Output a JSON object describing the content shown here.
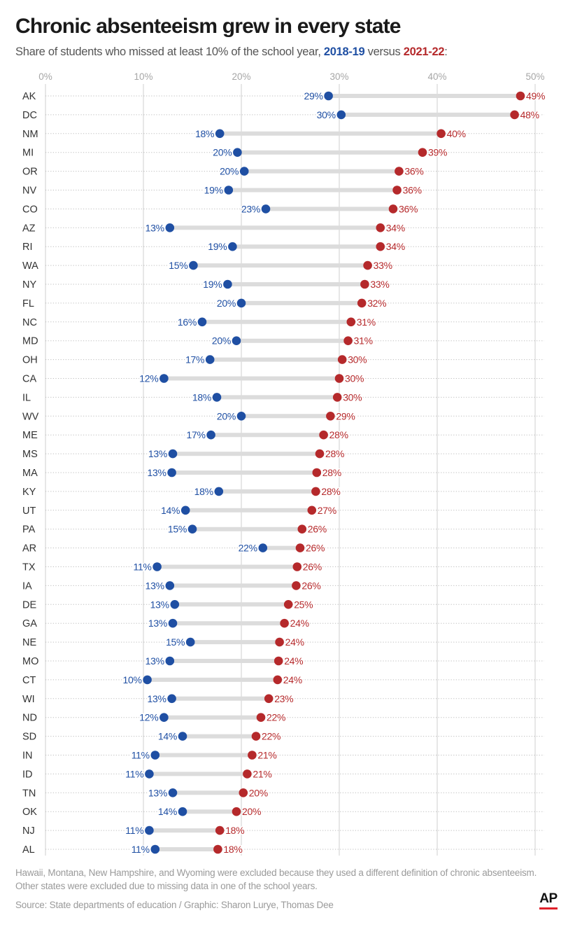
{
  "header": {
    "title": "Chronic absenteeism grew in every state",
    "subtitle_prefix": "Share of students who missed at least 10% of the school year, ",
    "subtitle_year1": "2018-19",
    "subtitle_middle": " versus ",
    "subtitle_year2": "2021-22",
    "subtitle_suffix": ":"
  },
  "colors": {
    "series_2018": "#1f4fa3",
    "series_2021": "#b5292b",
    "connector": "#dcdcdc",
    "grid": "#cfcfcf",
    "axis_text": "#a6a6a6"
  },
  "chart_data": {
    "type": "dumbbell",
    "title": "Chronic absenteeism grew in every state",
    "subtitle": "Share of students who missed at least 10% of the school year, 2018-19 versus 2021-22:",
    "xlabel": "",
    "ylabel": "",
    "xlim": [
      0,
      50
    ],
    "x_ticks": [
      0,
      10,
      20,
      30,
      40,
      50
    ],
    "x_tick_labels": [
      "0%",
      "10%",
      "20%",
      "30%",
      "40%",
      "50%"
    ],
    "legend": [
      "2018-19",
      "2021-22"
    ],
    "categories": [
      "AK",
      "DC",
      "NM",
      "MI",
      "OR",
      "NV",
      "CO",
      "AZ",
      "RI",
      "WA",
      "NY",
      "FL",
      "NC",
      "MD",
      "OH",
      "CA",
      "IL",
      "WV",
      "ME",
      "MS",
      "MA",
      "KY",
      "UT",
      "PA",
      "AR",
      "TX",
      "IA",
      "DE",
      "GA",
      "NE",
      "MO",
      "CT",
      "WI",
      "ND",
      "SD",
      "IN",
      "ID",
      "TN",
      "OK",
      "NJ",
      "AL"
    ],
    "series": [
      {
        "name": "2018-19",
        "values": [
          28.9,
          30.2,
          17.8,
          19.6,
          20.3,
          18.7,
          22.5,
          12.7,
          19.1,
          15.1,
          18.6,
          20.0,
          16.0,
          19.5,
          16.8,
          12.1,
          17.5,
          20.0,
          16.9,
          13.0,
          12.9,
          17.7,
          14.3,
          15.0,
          22.2,
          11.4,
          12.7,
          13.2,
          13.0,
          14.8,
          12.7,
          10.4,
          12.9,
          12.1,
          14.0,
          11.2,
          10.6,
          13.0,
          14.0,
          10.6,
          11.2
        ],
        "labels": [
          "29%",
          "30%",
          "18%",
          "20%",
          "20%",
          "19%",
          "23%",
          "13%",
          "19%",
          "15%",
          "19%",
          "20%",
          "16%",
          "20%",
          "17%",
          "12%",
          "18%",
          "20%",
          "17%",
          "13%",
          "13%",
          "18%",
          "14%",
          "15%",
          "22%",
          "11%",
          "13%",
          "13%",
          "13%",
          "15%",
          "13%",
          "10%",
          "13%",
          "12%",
          "14%",
          "11%",
          "11%",
          "13%",
          "14%",
          "11%",
          "11%"
        ]
      },
      {
        "name": "2021-22",
        "values": [
          48.5,
          47.9,
          40.4,
          38.5,
          36.1,
          35.9,
          35.5,
          34.2,
          34.2,
          32.9,
          32.6,
          32.3,
          31.2,
          30.9,
          30.3,
          30.0,
          29.8,
          29.1,
          28.4,
          28.0,
          27.7,
          27.6,
          27.2,
          26.2,
          26.0,
          25.7,
          25.6,
          24.8,
          24.4,
          23.9,
          23.8,
          23.7,
          22.8,
          22.0,
          21.5,
          21.1,
          20.6,
          20.2,
          19.5,
          17.8,
          17.6
        ],
        "labels": [
          "49%",
          "48%",
          "40%",
          "39%",
          "36%",
          "36%",
          "36%",
          "34%",
          "34%",
          "33%",
          "33%",
          "32%",
          "31%",
          "31%",
          "30%",
          "30%",
          "30%",
          "29%",
          "28%",
          "28%",
          "28%",
          "28%",
          "27%",
          "26%",
          "26%",
          "26%",
          "26%",
          "25%",
          "24%",
          "24%",
          "24%",
          "24%",
          "23%",
          "22%",
          "22%",
          "21%",
          "21%",
          "20%",
          "20%",
          "18%",
          "18%"
        ]
      }
    ]
  },
  "footer": {
    "note_line1": "Hawaii, Montana, New Hampshire, and Wyoming were excluded because they used a different definition of chronic absenteeism.",
    "note_line2": "Other states were excluded due to missing data in one of the school years.",
    "source": "Source: State departments of education / Graphic: Sharon Lurye, Thomas Dee",
    "logo_text": "AP"
  }
}
